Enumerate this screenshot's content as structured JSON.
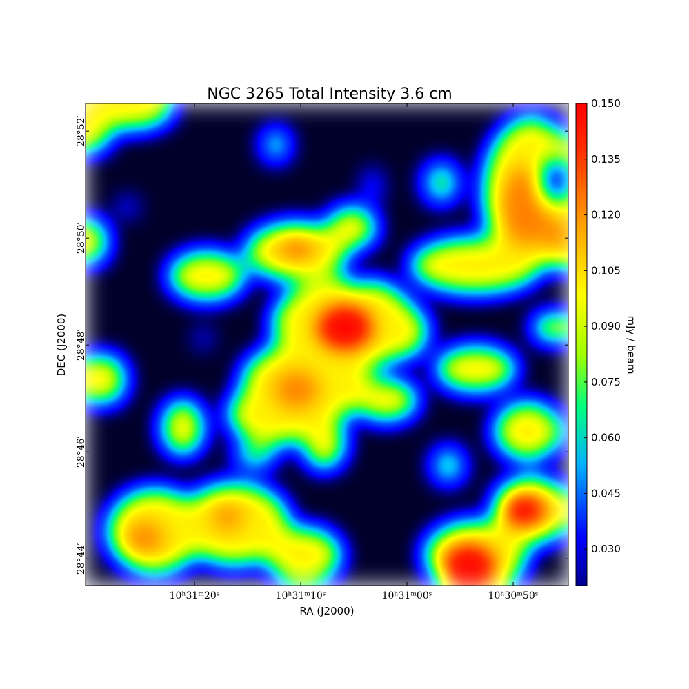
{
  "chart_data": {
    "type": "image",
    "title": "NGC 3265 Total Intensity 3.6 cm",
    "x_label": "RA (J2000)",
    "y_label": "DEC (J2000)",
    "colorbar_label": "mJy / beam",
    "xlim": [
      157.8761,
      157.6867
    ],
    "xticks": [
      {
        "value": 157.833333,
        "label": "10ʰ31ᵐ20ˢ"
      },
      {
        "value": 157.791667,
        "label": "10ʰ31ᵐ10ˢ"
      },
      {
        "value": 157.75,
        "label": "10ʰ31ᵐ00ˢ"
      },
      {
        "value": 157.708333,
        "label": "10ʰ30ᵐ50ˢ"
      }
    ],
    "ylim": [
      28.725,
      28.8753
    ],
    "yticks": [
      {
        "value": 28.733333,
        "label": "28°44′"
      },
      {
        "value": 28.766667,
        "label": "28°46′"
      },
      {
        "value": 28.8,
        "label": "28°48′"
      },
      {
        "value": 28.833333,
        "label": "28°50′"
      },
      {
        "value": 28.866667,
        "label": "28°52′"
      }
    ],
    "clim": [
      0.0202,
      0.15
    ],
    "cticks": [
      {
        "value": 0.03,
        "label": "0.030"
      },
      {
        "value": 0.045,
        "label": "0.045"
      },
      {
        "value": 0.06,
        "label": "0.060"
      },
      {
        "value": 0.075,
        "label": "0.075"
      },
      {
        "value": 0.09,
        "label": "0.090"
      },
      {
        "value": 0.105,
        "label": "0.105"
      },
      {
        "value": 0.12,
        "label": "0.120"
      },
      {
        "value": 0.135,
        "label": "0.135"
      },
      {
        "value": 0.15,
        "label": "0.150"
      }
    ]
  }
}
